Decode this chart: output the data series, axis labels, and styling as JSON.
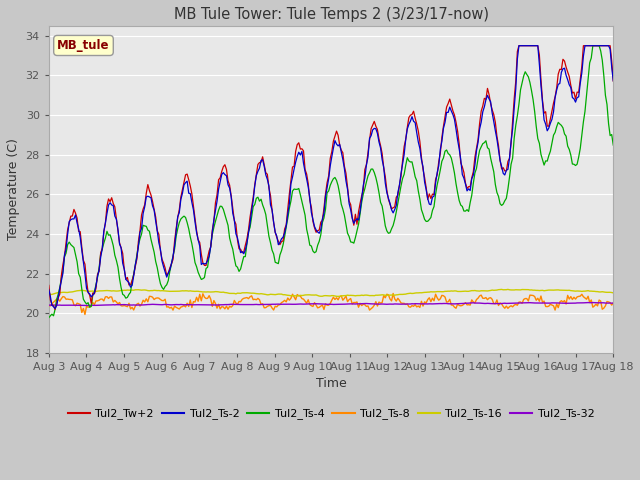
{
  "title": "MB Tule Tower: Tule Temps 2 (3/23/17-now)",
  "xlabel": "Time",
  "ylabel": "Temperature (C)",
  "ylim": [
    18,
    34.5
  ],
  "yticks": [
    18,
    20,
    22,
    24,
    26,
    28,
    30,
    32,
    34
  ],
  "fig_bg_color": "#c8c8c8",
  "plot_bg_color": "#e8e8e8",
  "legend_label": "MB_tule",
  "series_colors": {
    "Tul2_Tw+2": "#cc0000",
    "Tul2_Ts-2": "#0000cc",
    "Tul2_Ts-4": "#00aa00",
    "Tul2_Ts-8": "#ff8800",
    "Tul2_Ts-16": "#cccc00",
    "Tul2_Ts-32": "#8800cc"
  },
  "xtick_labels": [
    "Aug 3",
    "Aug 4",
    "Aug 5",
    "Aug 6",
    "Aug 7",
    "Aug 8",
    "Aug 9",
    "Aug 10",
    "Aug 11",
    "Aug 12",
    "Aug 13",
    "Aug 14",
    "Aug 15",
    "Aug 16",
    "Aug 17",
    "Aug 18"
  ],
  "num_days": 15
}
